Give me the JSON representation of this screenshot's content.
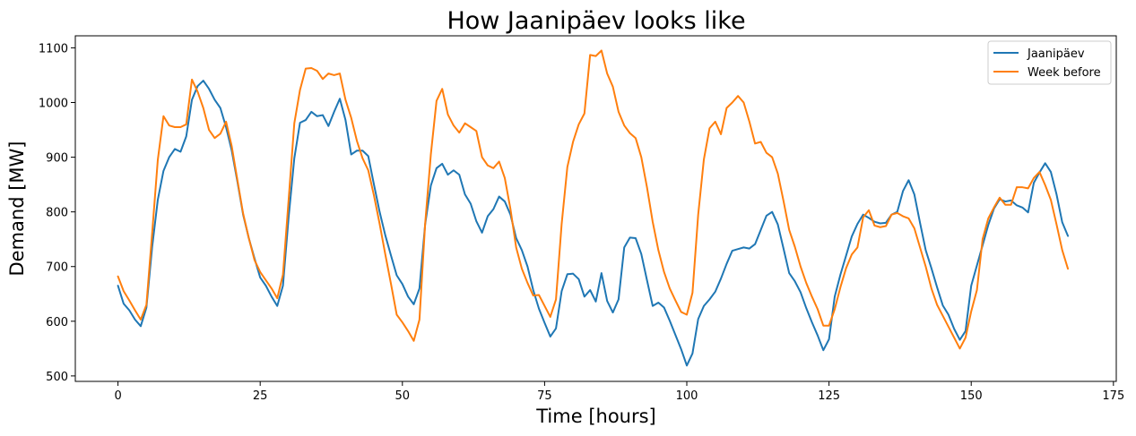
{
  "chart_data": {
    "type": "line",
    "title": "How Jaanipäev looks like",
    "xlabel": "Time [hours]",
    "ylabel": "Demand [MW]",
    "xlim": [
      -7.5,
      175.5
    ],
    "ylim": [
      490,
      1122
    ],
    "xticks": [
      0,
      25,
      50,
      75,
      100,
      125,
      150,
      175
    ],
    "yticks": [
      500,
      600,
      700,
      800,
      900,
      1000,
      1100
    ],
    "legend_position": "top-right",
    "grid": false,
    "series": [
      {
        "name": "Jaanipäev",
        "color": "#1f77b4",
        "values": [
          665,
          632,
          620,
          603,
          591,
          625,
          735,
          822,
          875,
          900,
          915,
          910,
          938,
          1005,
          1030,
          1040,
          1025,
          1005,
          990,
          955,
          912,
          855,
          795,
          752,
          715,
          680,
          665,
          645,
          628,
          665,
          790,
          898,
          963,
          968,
          983,
          975,
          977,
          957,
          983,
          1007,
          968,
          905,
          912,
          912,
          902,
          850,
          800,
          757,
          720,
          684,
          668,
          645,
          631,
          660,
          777,
          848,
          880,
          888,
          868,
          876,
          868,
          832,
          815,
          783,
          762,
          792,
          805,
          828,
          819,
          795,
          752,
          730,
          700,
          657,
          623,
          597,
          572,
          587,
          655,
          686,
          687,
          677,
          645,
          657,
          636,
          688,
          637,
          616,
          640,
          735,
          753,
          752,
          723,
          675,
          628,
          634,
          625,
          601,
          575,
          549,
          519,
          541,
          604,
          628,
          640,
          654,
          678,
          705,
          729,
          732,
          735,
          733,
          741,
          767,
          793,
          800,
          777,
          733,
          688,
          673,
          653,
          624,
          598,
          574,
          547,
          567,
          645,
          685,
          720,
          755,
          778,
          795,
          789,
          782,
          779,
          780,
          795,
          800,
          838,
          858,
          832,
          780,
          730,
          697,
          662,
          629,
          612,
          586,
          566,
          582,
          665,
          702,
          739,
          776,
          806,
          823,
          819,
          821,
          812,
          808,
          799,
          853,
          872,
          889,
          873,
          832,
          781,
          756
        ]
      },
      {
        "name": "Week before",
        "color": "#ff7f0e",
        "values": [
          682,
          655,
          638,
          620,
          603,
          630,
          760,
          895,
          975,
          958,
          955,
          955,
          960,
          1042,
          1020,
          990,
          950,
          935,
          943,
          965,
          920,
          858,
          797,
          752,
          712,
          690,
          675,
          660,
          642,
          685,
          822,
          962,
          1023,
          1062,
          1063,
          1058,
          1043,
          1053,
          1050,
          1053,
          1005,
          972,
          930,
          898,
          876,
          830,
          778,
          722,
          668,
          612,
          598,
          582,
          564,
          603,
          778,
          905,
          1003,
          1025,
          978,
          958,
          945,
          962,
          955,
          948,
          900,
          885,
          880,
          892,
          862,
          805,
          735,
          696,
          670,
          647,
          648,
          628,
          608,
          640,
          778,
          882,
          928,
          960,
          980,
          1087,
          1085,
          1095,
          1053,
          1029,
          983,
          958,
          944,
          935,
          900,
          845,
          782,
          730,
          690,
          660,
          638,
          617,
          612,
          652,
          795,
          896,
          953,
          965,
          942,
          990,
          1000,
          1012,
          1000,
          965,
          925,
          928,
          908,
          900,
          870,
          820,
          767,
          736,
          700,
          670,
          645,
          622,
          592,
          592,
          622,
          662,
          697,
          722,
          735,
          790,
          803,
          775,
          772,
          774,
          795,
          798,
          792,
          788,
          770,
          735,
          700,
          660,
          630,
          610,
          590,
          570,
          550,
          570,
          618,
          657,
          750,
          788,
          808,
          826,
          813,
          813,
          845,
          845,
          843,
          862,
          873,
          849,
          822,
          777,
          730,
          696
        ]
      }
    ]
  }
}
